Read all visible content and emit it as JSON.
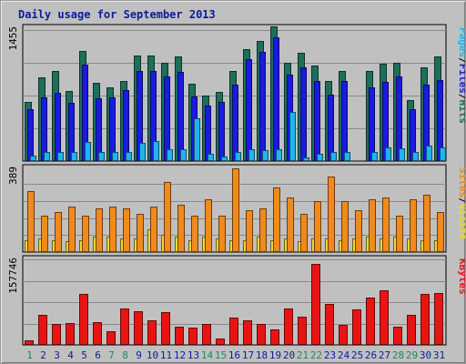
{
  "title": "Daily usage for September 2013",
  "chart_data": [
    {
      "type": "bar",
      "panel": "pages-files-hits",
      "x": [
        "1",
        "2",
        "3",
        "4",
        "5",
        "6",
        "7",
        "8",
        "9",
        "10",
        "11",
        "12",
        "13",
        "14",
        "15",
        "16",
        "17",
        "18",
        "19",
        "20",
        "21",
        "22",
        "23",
        "24",
        "25",
        "26",
        "27",
        "28",
        "29",
        "30",
        "31"
      ],
      "y_max_label": "1455",
      "right_label": {
        "parts": [
          "Pages",
          "/",
          "Files",
          "/",
          "Hits"
        ],
        "colors": [
          "#1fb4f0",
          "#000000",
          "#1a1ae0",
          "#000000",
          "#1d6e5a"
        ]
      },
      "series": [
        {
          "name": "Hits",
          "color": "#1d6e5a",
          "values": [
            660,
            930,
            1000,
            780,
            1230,
            870,
            820,
            890,
            1180,
            1180,
            1090,
            1170,
            860,
            730,
            770,
            1000,
            1250,
            1340,
            1500,
            1090,
            1210,
            1060,
            890,
            1000,
            null,
            1000,
            1080,
            1090,
            680,
            1040,
            1170
          ]
        },
        {
          "name": "Files",
          "color": "#1a1ae0",
          "values": [
            580,
            710,
            760,
            650,
            1070,
            700,
            710,
            790,
            1000,
            1000,
            940,
            990,
            720,
            620,
            660,
            850,
            1130,
            1220,
            1380,
            960,
            1040,
            890,
            740,
            890,
            null,
            820,
            880,
            940,
            580,
            850,
            900
          ]
        },
        {
          "name": "Pages",
          "color": "#1fb4f0",
          "values": [
            60,
            100,
            100,
            100,
            210,
            100,
            100,
            100,
            200,
            220,
            130,
            130,
            480,
            80,
            50,
            100,
            130,
            120,
            130,
            550,
            40,
            80,
            100,
            100,
            null,
            100,
            150,
            140,
            100,
            170,
            150
          ]
        }
      ]
    },
    {
      "type": "bar",
      "panel": "sites-visits",
      "x": [
        "1",
        "2",
        "3",
        "4",
        "5",
        "6",
        "7",
        "8",
        "9",
        "10",
        "11",
        "12",
        "13",
        "14",
        "15",
        "16",
        "17",
        "18",
        "19",
        "20",
        "21",
        "22",
        "23",
        "24",
        "25",
        "26",
        "27",
        "28",
        "29",
        "30",
        "31"
      ],
      "y_max_label": "389",
      "right_label": {
        "parts": [
          "Sites",
          "/",
          "Visits"
        ],
        "colors": [
          "#f08a1c",
          "#000000",
          "#f2d72b"
        ]
      },
      "series": [
        {
          "name": "Visits",
          "color": "#f2d72b",
          "values": [
            70,
            80,
            70,
            60,
            70,
            90,
            90,
            80,
            80,
            130,
            100,
            90,
            70,
            90,
            80,
            70,
            70,
            90,
            70,
            80,
            60,
            80,
            80,
            70,
            80,
            90,
            80,
            90,
            80,
            70,
            70
          ]
        },
        {
          "name": "Sites",
          "color": "#f08a1c",
          "values": [
            350,
            210,
            230,
            260,
            210,
            250,
            260,
            250,
            220,
            260,
            400,
            270,
            210,
            300,
            210,
            480,
            240,
            250,
            370,
            310,
            220,
            290,
            430,
            290,
            240,
            300,
            310,
            210,
            300,
            330,
            230
          ]
        }
      ]
    },
    {
      "type": "bar",
      "panel": "kbytes",
      "x": [
        "1",
        "2",
        "3",
        "4",
        "5",
        "6",
        "7",
        "8",
        "9",
        "10",
        "11",
        "12",
        "13",
        "14",
        "15",
        "16",
        "17",
        "18",
        "19",
        "20",
        "21",
        "22",
        "23",
        "24",
        "25",
        "26",
        "27",
        "28",
        "29",
        "30",
        "31"
      ],
      "y_max_label": "157746",
      "right_label": {
        "parts": [
          "KBytes"
        ],
        "colors": [
          "#e81414"
        ]
      },
      "series": [
        {
          "name": "KBytes",
          "color": "#e81414",
          "values": [
            8,
            55,
            38,
            40,
            95,
            42,
            25,
            67,
            63,
            45,
            60,
            33,
            32,
            38,
            11,
            50,
            45,
            38,
            28,
            67,
            52,
            150,
            75,
            37,
            66,
            87,
            101,
            33,
            55,
            94,
            96
          ]
        }
      ]
    }
  ],
  "x_axis": {
    "labels": [
      "1",
      "2",
      "3",
      "4",
      "5",
      "6",
      "7",
      "8",
      "9",
      "10",
      "11",
      "12",
      "13",
      "14",
      "15",
      "16",
      "17",
      "18",
      "19",
      "20",
      "21",
      "22",
      "23",
      "24",
      "25",
      "26",
      "27",
      "28",
      "29",
      "30",
      "31"
    ],
    "weekend_color": "#1e8a5a",
    "weekday_color": "#0d1c9a",
    "weekend_days": [
      "1",
      "7",
      "8",
      "14",
      "15",
      "21",
      "22",
      "28",
      "29"
    ]
  }
}
